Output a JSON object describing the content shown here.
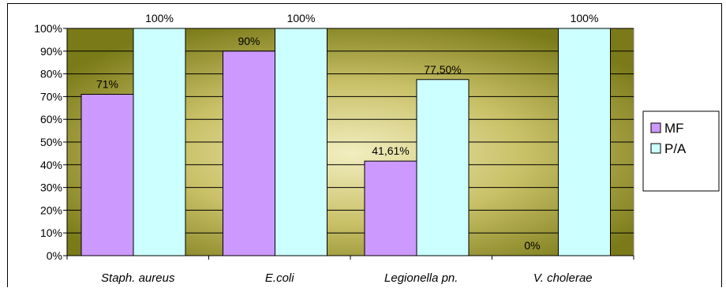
{
  "chart_data": {
    "type": "bar",
    "categories": [
      "Staph.  aureus",
      "E.coli",
      "Legionella pn.",
      "V. cholerae"
    ],
    "series": [
      {
        "name": "MF",
        "values": [
          71,
          90,
          41.61,
          0
        ],
        "labels": [
          "71%",
          "90%",
          "41,61%",
          "0%"
        ],
        "color": "#cc99ff"
      },
      {
        "name": "P/A",
        "values": [
          100,
          100,
          77.5,
          100
        ],
        "labels": [
          "100%",
          "100%",
          "77,50%",
          "100%"
        ],
        "color": "#ccffff"
      }
    ],
    "yticks": [
      "0%",
      "10%",
      "20%",
      "30%",
      "40%",
      "50%",
      "60%",
      "70%",
      "80%",
      "90%",
      "100%"
    ],
    "ylim": [
      0,
      100
    ],
    "grid": true,
    "legend": "right",
    "plot_background": [
      "#7a7a18",
      "#f2eec0"
    ]
  }
}
